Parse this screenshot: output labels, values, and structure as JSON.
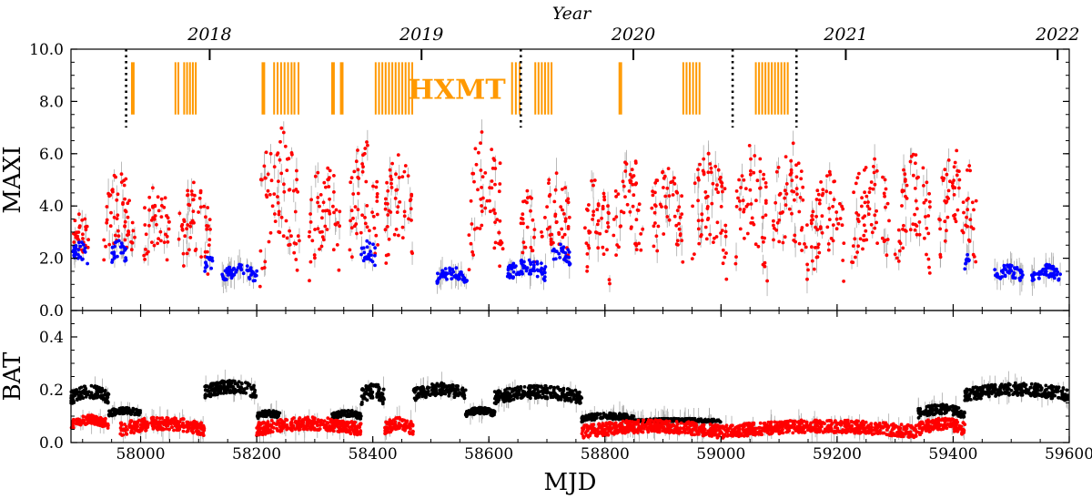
{
  "chart_data": {
    "type": "scatter",
    "title": "",
    "xlabel": "MJD",
    "xlim": [
      57880,
      59600
    ],
    "x_ticks": [
      58000,
      58200,
      58400,
      58600,
      58800,
      59000,
      59200,
      59400,
      59600
    ],
    "top_axis": {
      "label": "Year",
      "ticks": [
        {
          "label": "2018",
          "mjd": 58119
        },
        {
          "label": "2019",
          "mjd": 58484
        },
        {
          "label": "2020",
          "mjd": 58849
        },
        {
          "label": "2021",
          "mjd": 59215
        },
        {
          "label": "2022",
          "mjd": 59580
        }
      ]
    },
    "colors": {
      "maxi_bright": "#ff0000",
      "maxi_faint": "#0000ff",
      "bat_high": "#000000",
      "bat_low": "#ff0000",
      "hxmt": "#ff9900",
      "errorbar": "#aaaaaa"
    },
    "panels": [
      {
        "name": "maxi",
        "ylabel": "MAXI",
        "ylim": [
          0.0,
          10.0
        ],
        "y_ticks": [
          "0.0",
          "2.0",
          "4.0",
          "6.0",
          "8.0",
          "10.0"
        ],
        "hxmt_label": "HXMT",
        "hxmt_bars": [
          {
            "start": 57985,
            "end": 57988,
            "y0": 7.5,
            "y1": 9.5
          },
          {
            "start": 58060,
            "end": 58065,
            "y0": 7.5,
            "y1": 9.5
          },
          {
            "start": 58075,
            "end": 58095,
            "y0": 7.5,
            "y1": 9.5
          },
          {
            "start": 58210,
            "end": 58213,
            "y0": 7.5,
            "y1": 9.5
          },
          {
            "start": 58230,
            "end": 58260,
            "y0": 7.5,
            "y1": 9.5
          },
          {
            "start": 58265,
            "end": 58272,
            "y0": 7.5,
            "y1": 9.5
          },
          {
            "start": 58330,
            "end": 58333,
            "y0": 7.5,
            "y1": 9.5
          },
          {
            "start": 58345,
            "end": 58348,
            "y0": 7.5,
            "y1": 9.5
          },
          {
            "start": 58405,
            "end": 58468,
            "y0": 7.5,
            "y1": 9.5
          },
          {
            "start": 58640,
            "end": 58653,
            "y0": 7.5,
            "y1": 9.5
          },
          {
            "start": 58680,
            "end": 58708,
            "y0": 7.5,
            "y1": 9.5
          },
          {
            "start": 58825,
            "end": 58828,
            "y0": 7.5,
            "y1": 9.5
          },
          {
            "start": 58935,
            "end": 58963,
            "y0": 7.5,
            "y1": 9.5
          },
          {
            "start": 59060,
            "end": 59115,
            "y0": 7.5,
            "y1": 9.5
          }
        ],
        "dotted_lines_mjd": [
          57975,
          58655,
          59020,
          59130
        ],
        "series": [
          {
            "name": "bright",
            "color": "#ff0000",
            "segments": [
              {
                "start": 57882,
                "end": 57910,
                "base": 2.4,
                "amp": 1.4
              },
              {
                "start": 57935,
                "end": 57990,
                "base": 2.8,
                "amp": 2.2
              },
              {
                "start": 58005,
                "end": 58050,
                "base": 2.6,
                "amp": 2.0
              },
              {
                "start": 58065,
                "end": 58120,
                "base": 2.4,
                "amp": 2.2
              },
              {
                "start": 58205,
                "end": 58275,
                "base": 3.0,
                "amp": 3.6
              },
              {
                "start": 58290,
                "end": 58345,
                "base": 2.6,
                "amp": 2.8
              },
              {
                "start": 58360,
                "end": 58410,
                "base": 3.2,
                "amp": 3.0
              },
              {
                "start": 58420,
                "end": 58470,
                "base": 3.0,
                "amp": 2.6
              },
              {
                "start": 58565,
                "end": 58625,
                "base": 3.0,
                "amp": 3.5
              },
              {
                "start": 58655,
                "end": 58680,
                "base": 2.6,
                "amp": 1.8
              },
              {
                "start": 58690,
                "end": 58740,
                "base": 2.7,
                "amp": 2.4
              },
              {
                "start": 58765,
                "end": 58810,
                "base": 2.4,
                "amp": 2.6
              },
              {
                "start": 58815,
                "end": 58865,
                "base": 3.0,
                "amp": 2.8
              },
              {
                "start": 58880,
                "end": 58935,
                "base": 3.0,
                "amp": 2.4
              },
              {
                "start": 58945,
                "end": 59010,
                "base": 2.8,
                "amp": 2.8
              },
              {
                "start": 59025,
                "end": 59080,
                "base": 2.8,
                "amp": 3.2
              },
              {
                "start": 59090,
                "end": 59150,
                "base": 2.9,
                "amp": 3.2
              },
              {
                "start": 59155,
                "end": 59215,
                "base": 2.4,
                "amp": 2.6
              },
              {
                "start": 59225,
                "end": 59290,
                "base": 2.8,
                "amp": 2.8
              },
              {
                "start": 59300,
                "end": 59360,
                "base": 2.9,
                "amp": 2.8
              },
              {
                "start": 59375,
                "end": 59440,
                "base": 3.2,
                "amp": 2.6
              }
            ]
          },
          {
            "name": "faint",
            "color": "#0000ff",
            "segments": [
              {
                "start": 57882,
                "end": 57910,
                "base": 2.0,
                "amp": 0.6
              },
              {
                "start": 57950,
                "end": 57975,
                "base": 2.1,
                "amp": 0.5
              },
              {
                "start": 58110,
                "end": 58125,
                "base": 1.7,
                "amp": 0.4
              },
              {
                "start": 58140,
                "end": 58200,
                "base": 1.3,
                "amp": 0.4
              },
              {
                "start": 58380,
                "end": 58405,
                "base": 2.0,
                "amp": 0.6
              },
              {
                "start": 58510,
                "end": 58565,
                "base": 1.2,
                "amp": 0.4
              },
              {
                "start": 58630,
                "end": 58700,
                "base": 1.4,
                "amp": 0.5
              },
              {
                "start": 58710,
                "end": 58740,
                "base": 2.0,
                "amp": 0.5
              },
              {
                "start": 59420,
                "end": 59430,
                "base": 1.8,
                "amp": 0.4
              },
              {
                "start": 59470,
                "end": 59520,
                "base": 1.3,
                "amp": 0.4
              },
              {
                "start": 59535,
                "end": 59585,
                "base": 1.3,
                "amp": 0.4
              }
            ]
          }
        ]
      },
      {
        "name": "bat",
        "ylabel": "BAT",
        "ylim": [
          0.0,
          0.5
        ],
        "y_ticks": [
          "0.0",
          "0.2",
          "0.4"
        ],
        "series": [
          {
            "name": "high",
            "color": "#000000",
            "segments": [
              {
                "start": 57880,
                "end": 57945,
                "base": 0.17,
                "amp": 0.04
              },
              {
                "start": 57945,
                "end": 58000,
                "base": 0.11,
                "amp": 0.02
              },
              {
                "start": 58110,
                "end": 58200,
                "base": 0.19,
                "amp": 0.04
              },
              {
                "start": 58200,
                "end": 58240,
                "base": 0.1,
                "amp": 0.02
              },
              {
                "start": 58330,
                "end": 58380,
                "base": 0.1,
                "amp": 0.02
              },
              {
                "start": 58380,
                "end": 58420,
                "base": 0.17,
                "amp": 0.05
              },
              {
                "start": 58470,
                "end": 58560,
                "base": 0.18,
                "amp": 0.04
              },
              {
                "start": 58560,
                "end": 58610,
                "base": 0.11,
                "amp": 0.02
              },
              {
                "start": 58610,
                "end": 58760,
                "base": 0.17,
                "amp": 0.04
              },
              {
                "start": 58760,
                "end": 58850,
                "base": 0.09,
                "amp": 0.02
              },
              {
                "start": 58850,
                "end": 59000,
                "base": 0.08,
                "amp": 0.01
              },
              {
                "start": 59340,
                "end": 59420,
                "base": 0.11,
                "amp": 0.03
              },
              {
                "start": 59420,
                "end": 59600,
                "base": 0.18,
                "amp": 0.04
              }
            ]
          },
          {
            "name": "low",
            "color": "#ff0000",
            "segments": [
              {
                "start": 57880,
                "end": 57945,
                "base": 0.07,
                "amp": 0.03
              },
              {
                "start": 57965,
                "end": 58110,
                "base": 0.05,
                "amp": 0.04
              },
              {
                "start": 58200,
                "end": 58380,
                "base": 0.05,
                "amp": 0.04
              },
              {
                "start": 58420,
                "end": 58470,
                "base": 0.05,
                "amp": 0.04
              },
              {
                "start": 58760,
                "end": 59000,
                "base": 0.04,
                "amp": 0.04
              },
              {
                "start": 59000,
                "end": 59340,
                "base": 0.04,
                "amp": 0.04
              },
              {
                "start": 59340,
                "end": 59420,
                "base": 0.05,
                "amp": 0.04
              }
            ]
          }
        ]
      }
    ]
  }
}
